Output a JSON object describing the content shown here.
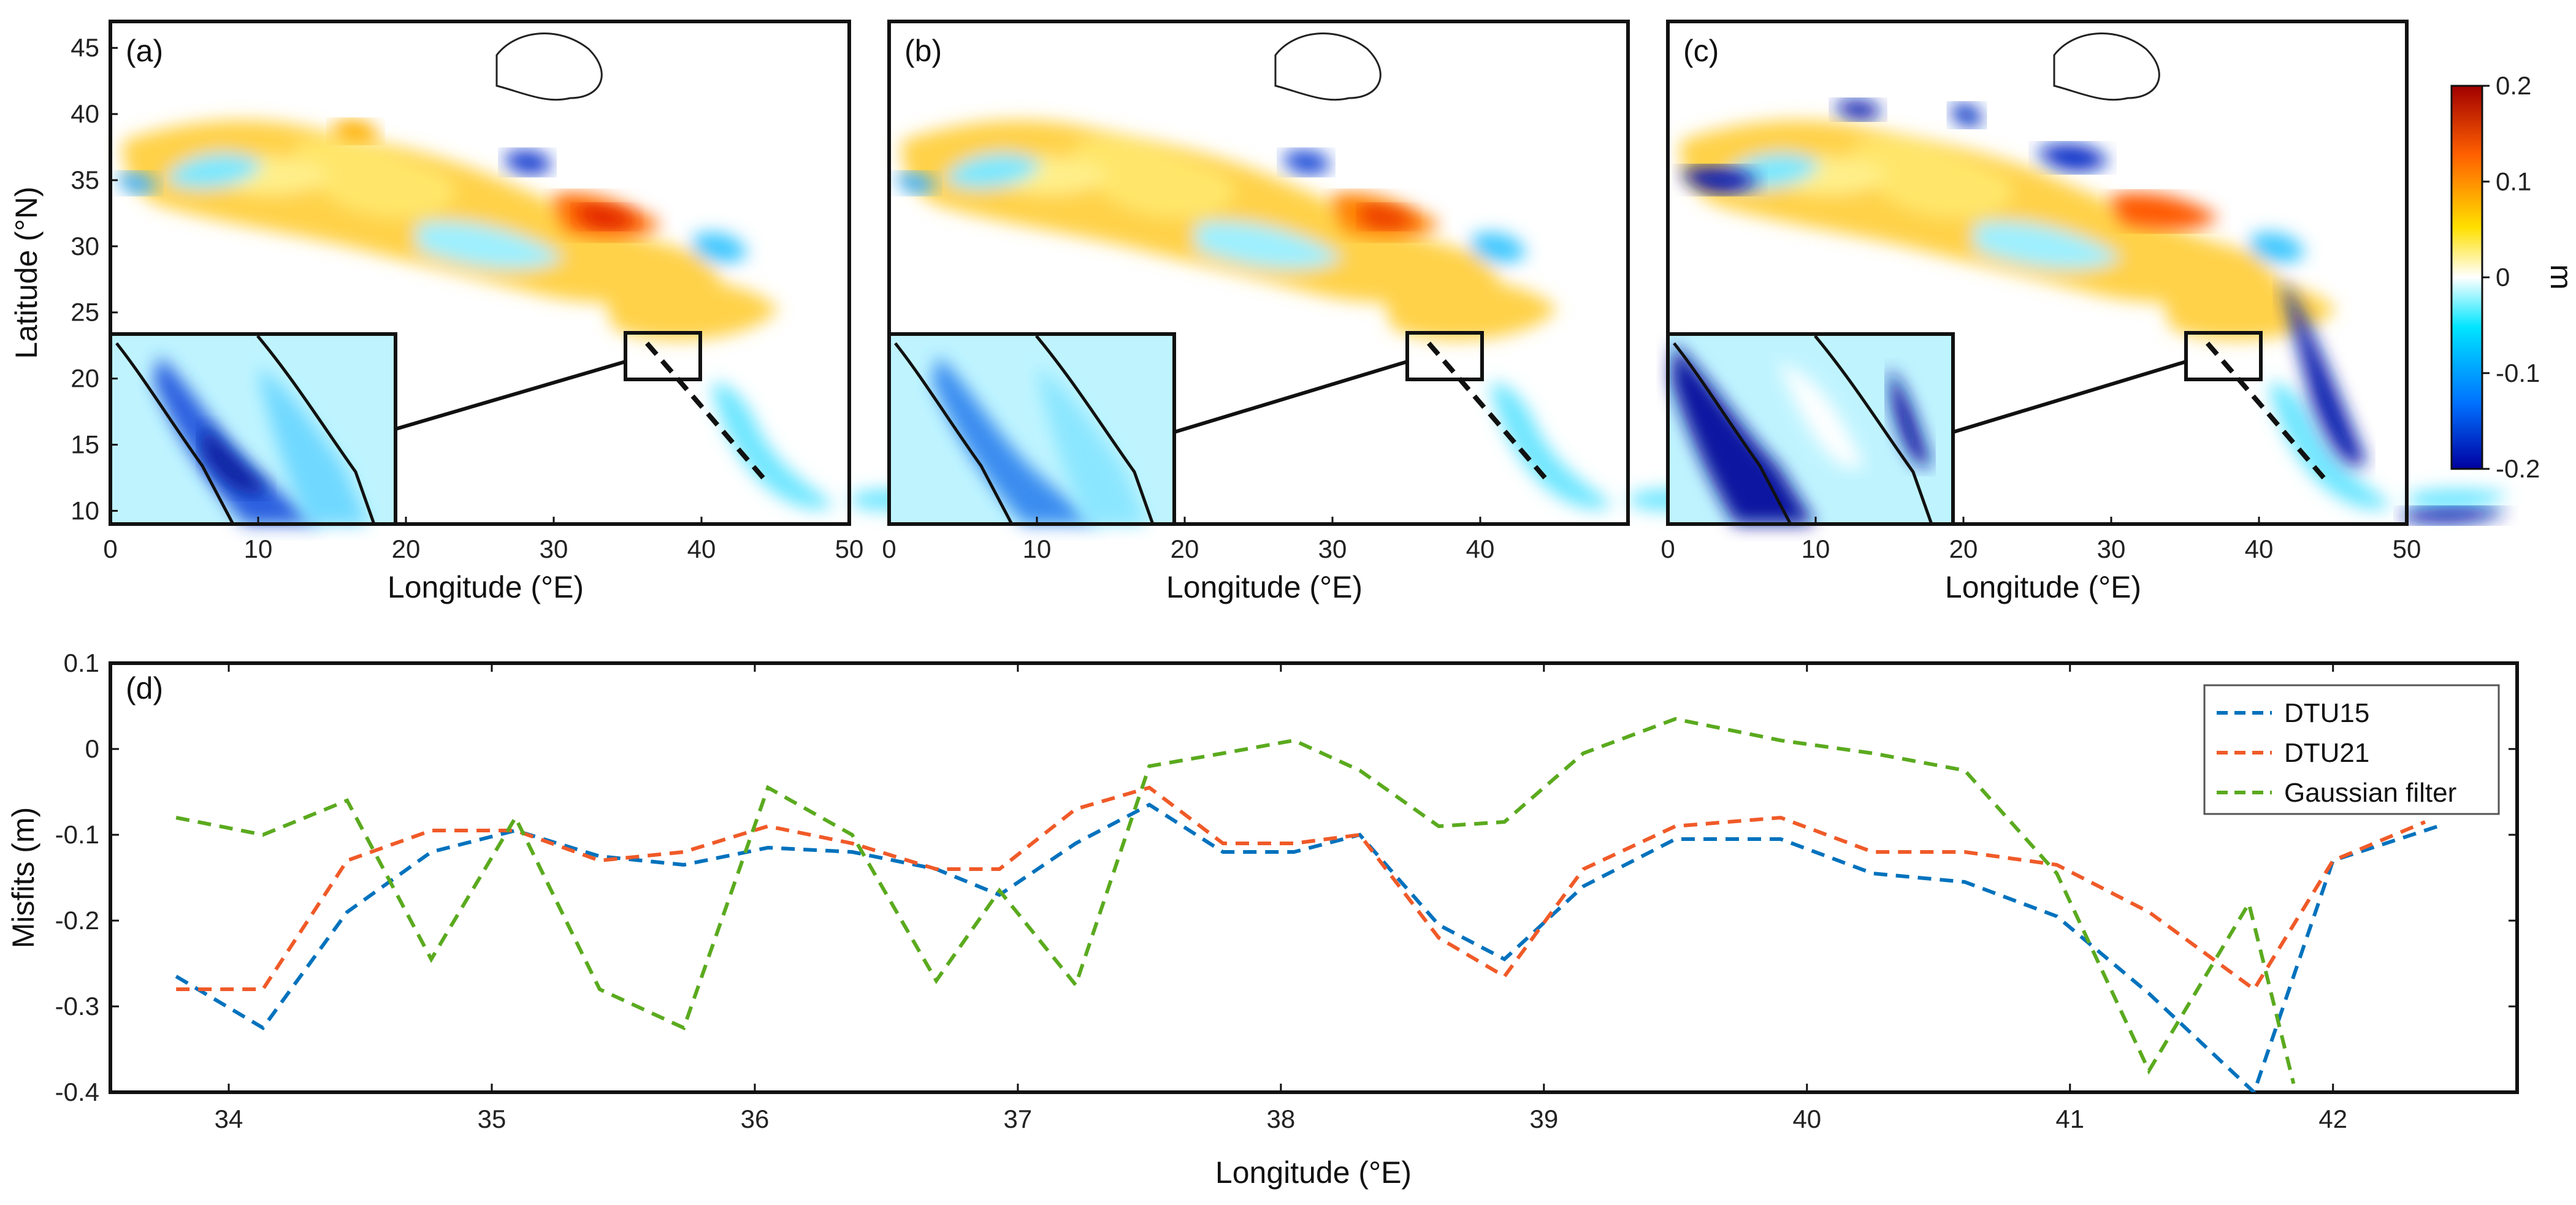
{
  "chart_data": [
    {
      "type": "heatmap",
      "panel": "(a)",
      "xlabel": "Longitude (°E)",
      "ylabel": "Latitude (°N)",
      "xlim": [
        0,
        50
      ],
      "ylim": [
        9,
        47
      ],
      "xticks": [
        "0",
        "10",
        "20",
        "30",
        "40",
        "50"
      ],
      "yticks": [
        "10",
        "15",
        "20",
        "25",
        "30",
        "35",
        "40",
        "45"
      ],
      "inset_box": {
        "lon": [
          35,
          40
        ],
        "lat": [
          20,
          23.5
        ]
      }
    },
    {
      "type": "heatmap",
      "panel": "(b)",
      "xlabel": "Longitude (°E)",
      "xlim": [
        0,
        50
      ],
      "ylim": [
        9,
        47
      ],
      "xticks": [
        "0",
        "10",
        "20",
        "30",
        "40"
      ],
      "inset_box": {
        "lon": [
          35,
          40
        ],
        "lat": [
          20,
          23.5
        ]
      }
    },
    {
      "type": "heatmap",
      "panel": "(c)",
      "xlabel": "Longitude (°E)",
      "xlim": [
        0,
        50
      ],
      "ylim": [
        9,
        47
      ],
      "xticks": [
        "0",
        "10",
        "20",
        "30",
        "40",
        "50"
      ],
      "inset_box": {
        "lon": [
          35,
          40
        ],
        "lat": [
          20,
          23.5
        ]
      },
      "colorbar": {
        "range": [
          -0.2,
          0.2
        ],
        "ticks": [
          "0.2",
          "0.1",
          "0",
          "-0.1",
          "-0.2"
        ],
        "unit": "m",
        "colors": [
          "#0000a0",
          "#0070ff",
          "#00e5ff",
          "#ffffff",
          "#ffe000",
          "#ff6000",
          "#a00000"
        ]
      }
    },
    {
      "type": "line",
      "panel": "(d)",
      "xlabel": "Longitude (°E)",
      "ylabel": "Misfits (m)",
      "xlim": [
        33.55,
        42.7
      ],
      "ylim": [
        -0.4,
        0.1
      ],
      "xticks": [
        "34",
        "35",
        "36",
        "37",
        "38",
        "39",
        "40",
        "41",
        "42"
      ],
      "yticks": [
        "0.1",
        "0",
        "-0.1",
        "-0.2",
        "-0.3",
        "-0.4"
      ],
      "legend_position": "top-right",
      "series": [
        {
          "name": "DTU15",
          "color": "#0072bd",
          "x": [
            33.8,
            34.13,
            34.45,
            34.77,
            35.09,
            35.41,
            35.73,
            36.05,
            36.37,
            36.69,
            36.93,
            37.22,
            37.5,
            37.78,
            38.05,
            38.3,
            38.6,
            38.85,
            39.15,
            39.5,
            39.9,
            40.25,
            40.6,
            40.95,
            41.3,
            41.7,
            42.0,
            42.4
          ],
          "y": [
            -0.265,
            -0.325,
            -0.19,
            -0.12,
            -0.095,
            -0.125,
            -0.135,
            -0.115,
            -0.12,
            -0.14,
            -0.17,
            -0.11,
            -0.065,
            -0.12,
            -0.12,
            -0.1,
            -0.205,
            -0.245,
            -0.16,
            -0.105,
            -0.105,
            -0.145,
            -0.155,
            -0.195,
            -0.285,
            -0.4,
            -0.13,
            -0.09
          ]
        },
        {
          "name": "DTU21",
          "color": "#f05a28",
          "x": [
            33.8,
            34.13,
            34.45,
            34.77,
            35.09,
            35.41,
            35.73,
            36.05,
            36.37,
            36.69,
            36.93,
            37.22,
            37.5,
            37.78,
            38.05,
            38.3,
            38.6,
            38.85,
            39.15,
            39.5,
            39.9,
            40.25,
            40.6,
            40.95,
            41.3,
            41.7,
            42.0,
            42.35
          ],
          "y": [
            -0.28,
            -0.28,
            -0.13,
            -0.095,
            -0.095,
            -0.13,
            -0.12,
            -0.09,
            -0.11,
            -0.14,
            -0.14,
            -0.07,
            -0.045,
            -0.11,
            -0.11,
            -0.1,
            -0.22,
            -0.265,
            -0.14,
            -0.09,
            -0.08,
            -0.12,
            -0.12,
            -0.135,
            -0.19,
            -0.28,
            -0.13,
            -0.085
          ]
        },
        {
          "name": "Gaussian filter",
          "color": "#5aaa1e",
          "x": [
            33.8,
            34.13,
            34.45,
            34.77,
            35.09,
            35.41,
            35.73,
            36.05,
            36.37,
            36.69,
            36.93,
            37.22,
            37.5,
            37.78,
            38.05,
            38.3,
            38.6,
            38.85,
            39.15,
            39.5,
            39.9,
            40.25,
            40.6,
            40.95,
            41.3,
            41.68,
            41.85
          ],
          "y": [
            -0.08,
            -0.1,
            -0.06,
            -0.245,
            -0.08,
            -0.28,
            -0.325,
            -0.045,
            -0.1,
            -0.27,
            -0.165,
            -0.275,
            -0.02,
            -0.005,
            0.01,
            -0.025,
            -0.09,
            -0.085,
            -0.005,
            0.035,
            0.01,
            -0.005,
            -0.025,
            -0.145,
            -0.375,
            -0.18,
            -0.39
          ]
        }
      ]
    }
  ]
}
